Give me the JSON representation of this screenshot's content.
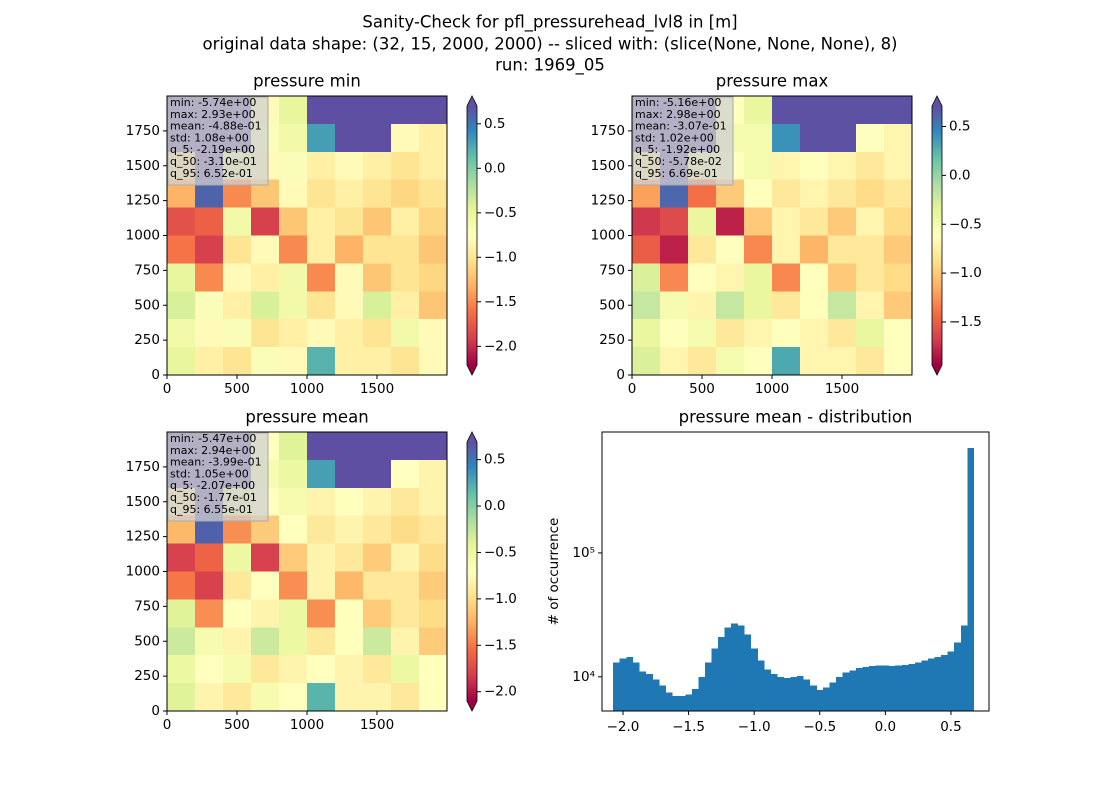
{
  "suptitle": [
    "Sanity-Check for pfl_pressurehead_lvl8 in [m]",
    "original data shape: (32, 15, 2000, 2000) -- sliced with: (slice(None, None, None), 8)",
    "run: 1969_05"
  ],
  "chart_data": [
    {
      "type": "heatmap",
      "title": "pressure min",
      "stats": [
        "min: -5.74e+00",
        "max: 2.93e+00",
        "mean: -4.88e-01",
        "std: 1.08e+00",
        "q_5: -2.19e+00",
        "q_50: -3.10e-01",
        "q_95: 6.52e-01"
      ],
      "xlim": [
        0,
        2000
      ],
      "ylim": [
        0,
        2000
      ],
      "xticks": [
        0,
        500,
        1000,
        1500
      ],
      "yticks": [
        0,
        250,
        500,
        750,
        1000,
        1250,
        1500,
        1750
      ],
      "values": [
        [
          0.7,
          0.7,
          0.7,
          -0.8,
          -0.5,
          0.7,
          0.7,
          0.7,
          0.7,
          0.7
        ],
        [
          0.7,
          0.7,
          0.7,
          -0.7,
          -0.6,
          0.3,
          0.7,
          0.7,
          -0.8,
          -0.9
        ],
        [
          -1.0,
          0.7,
          -0.6,
          -0.8,
          -0.7,
          -0.9,
          -0.8,
          -0.9,
          -1.0,
          -0.9
        ],
        [
          -1.3,
          0.6,
          -1.5,
          -1.2,
          -0.8,
          -1.0,
          -0.9,
          -1.0,
          -1.1,
          -1.0
        ],
        [
          -1.8,
          -1.7,
          -0.6,
          -1.9,
          -1.2,
          -0.9,
          -1.0,
          -1.2,
          -0.9,
          -1.1
        ],
        [
          -1.6,
          -1.9,
          -1.0,
          -0.8,
          -1.5,
          -0.9,
          -1.3,
          -1.0,
          -1.0,
          -1.2
        ],
        [
          -0.5,
          -1.5,
          -0.8,
          -0.9,
          -0.6,
          -1.5,
          -0.8,
          -1.2,
          -1.0,
          -1.1
        ],
        [
          -0.4,
          -0.7,
          -0.9,
          -0.4,
          -0.6,
          -1.0,
          -0.8,
          -0.4,
          -0.9,
          -1.2
        ],
        [
          -0.6,
          -0.8,
          -0.7,
          -1.0,
          -0.9,
          -0.8,
          -0.9,
          -1.0,
          -0.6,
          -0.8
        ],
        [
          -0.5,
          -0.9,
          -1.0,
          -0.7,
          -0.8,
          0.2,
          -0.9,
          -0.9,
          -1.0,
          -0.8
        ]
      ],
      "clim": [
        -2.21,
        0.7
      ],
      "cticks": [
        {
          "value": -2.0,
          "label": "−2.0"
        },
        {
          "value": -1.5,
          "label": "−1.5"
        },
        {
          "value": -1.0,
          "label": "−1.0"
        },
        {
          "value": -0.5,
          "label": "−0.5"
        },
        {
          "value": 0,
          "label": "0.0"
        },
        {
          "value": 0.5,
          "label": "0.5"
        }
      ],
      "colormap": [
        "#9e0142",
        "#d53e4f",
        "#f46d43",
        "#fdae61",
        "#fee08b",
        "#ffffbf",
        "#e6f598",
        "#abdda4",
        "#66c2a5",
        "#3288bd",
        "#5e4fa2"
      ]
    },
    {
      "type": "heatmap",
      "title": "pressure max",
      "stats": [
        "min: -5.16e+00",
        "max: 2.98e+00",
        "mean: -3.07e-01",
        "std: 1.02e+00",
        "q_5: -1.92e+00",
        "q_50: -5.78e-02",
        "q_95: 6.69e-01"
      ],
      "xlim": [
        0,
        2000
      ],
      "ylim": [
        0,
        2000
      ],
      "xticks": [
        0,
        500,
        1000,
        1500
      ],
      "yticks": [
        0,
        250,
        500,
        750,
        1000,
        1250,
        1500,
        1750
      ],
      "values": [
        [
          0.7,
          0.7,
          0.7,
          -0.6,
          -0.4,
          0.7,
          0.7,
          0.7,
          0.7,
          0.7
        ],
        [
          0.7,
          0.7,
          0.7,
          -0.5,
          -0.5,
          0.4,
          0.7,
          0.7,
          -0.6,
          -0.7
        ],
        [
          -0.8,
          0.7,
          -0.5,
          -0.6,
          -0.5,
          -0.7,
          -0.6,
          -0.7,
          -0.8,
          -0.7
        ],
        [
          -1.2,
          0.6,
          -1.4,
          -1.0,
          -0.6,
          -0.8,
          -0.7,
          -0.8,
          -0.9,
          -0.8
        ],
        [
          -1.7,
          -1.6,
          -0.4,
          -1.8,
          -1.0,
          -0.7,
          -0.8,
          -1.0,
          -0.7,
          -0.9
        ],
        [
          -1.5,
          -1.8,
          -0.8,
          -0.6,
          -1.3,
          -0.7,
          -1.1,
          -0.8,
          -0.8,
          -1.0
        ],
        [
          -0.3,
          -1.3,
          -0.6,
          -0.7,
          -0.4,
          -1.3,
          -0.6,
          -1.0,
          -0.8,
          -0.9
        ],
        [
          -0.2,
          -0.5,
          -0.7,
          -0.2,
          -0.4,
          -0.8,
          -0.6,
          -0.2,
          -0.7,
          -1.0
        ],
        [
          -0.4,
          -0.6,
          -0.5,
          -0.8,
          -0.7,
          -0.6,
          -0.7,
          -0.8,
          -0.4,
          -0.6
        ],
        [
          -0.3,
          -0.7,
          -0.8,
          -0.5,
          -0.6,
          0.3,
          -0.7,
          -0.7,
          -0.8,
          -0.6
        ]
      ],
      "clim": [
        -1.94,
        0.71
      ],
      "cticks": [
        {
          "value": -1.5,
          "label": "−1.5"
        },
        {
          "value": -1.0,
          "label": "−1.0"
        },
        {
          "value": -0.5,
          "label": "−0.5"
        },
        {
          "value": 0,
          "label": "0.0"
        },
        {
          "value": 0.5,
          "label": "0.5"
        }
      ],
      "colormap": [
        "#9e0142",
        "#d53e4f",
        "#f46d43",
        "#fdae61",
        "#fee08b",
        "#ffffbf",
        "#e6f598",
        "#abdda4",
        "#66c2a5",
        "#3288bd",
        "#5e4fa2"
      ]
    },
    {
      "type": "heatmap",
      "title": "pressure mean",
      "stats": [
        "min: -5.47e+00",
        "max: 2.94e+00",
        "mean: -3.99e-01",
        "std: 1.05e+00",
        "q_5: -2.07e+00",
        "q_50: -1.77e-01",
        "q_95: 6.55e-01"
      ],
      "xlim": [
        0,
        2000
      ],
      "ylim": [
        0,
        2000
      ],
      "xticks": [
        0,
        500,
        1000,
        1500
      ],
      "yticks": [
        0,
        250,
        500,
        750,
        1000,
        1250,
        1500,
        1750
      ],
      "values": [
        [
          0.7,
          0.7,
          0.7,
          -0.7,
          -0.4,
          0.7,
          0.7,
          0.7,
          0.7,
          0.7
        ],
        [
          0.7,
          0.7,
          0.7,
          -0.6,
          -0.5,
          0.3,
          0.7,
          0.7,
          -0.7,
          -0.8
        ],
        [
          -0.9,
          0.7,
          -0.5,
          -0.7,
          -0.6,
          -0.8,
          -0.7,
          -0.8,
          -0.9,
          -0.8
        ],
        [
          -1.2,
          0.6,
          -1.4,
          -1.1,
          -0.7,
          -0.9,
          -0.8,
          -0.9,
          -1.0,
          -0.9
        ],
        [
          -1.8,
          -1.6,
          -0.5,
          -1.8,
          -1.1,
          -0.8,
          -0.9,
          -1.1,
          -0.8,
          -1.0
        ],
        [
          -1.5,
          -1.8,
          -0.9,
          -0.7,
          -1.4,
          -0.8,
          -1.2,
          -0.9,
          -0.9,
          -1.1
        ],
        [
          -0.4,
          -1.4,
          -0.7,
          -0.8,
          -0.5,
          -1.4,
          -0.7,
          -1.1,
          -0.9,
          -1.0
        ],
        [
          -0.3,
          -0.6,
          -0.8,
          -0.3,
          -0.5,
          -0.9,
          -0.7,
          -0.3,
          -0.8,
          -1.1
        ],
        [
          -0.5,
          -0.7,
          -0.6,
          -0.9,
          -0.8,
          -0.7,
          -0.8,
          -0.9,
          -0.5,
          -0.7
        ],
        [
          -0.4,
          -0.8,
          -0.9,
          -0.6,
          -0.7,
          0.2,
          -0.8,
          -0.8,
          -0.9,
          -0.7
        ]
      ],
      "clim": [
        -2.1,
        0.69
      ],
      "cticks": [
        {
          "value": -2.0,
          "label": "−2.0"
        },
        {
          "value": -1.5,
          "label": "−1.5"
        },
        {
          "value": -1.0,
          "label": "−1.0"
        },
        {
          "value": -0.5,
          "label": "−0.5"
        },
        {
          "value": 0,
          "label": "0.0"
        },
        {
          "value": 0.5,
          "label": "0.5"
        }
      ],
      "colormap": [
        "#9e0142",
        "#d53e4f",
        "#f46d43",
        "#fdae61",
        "#fee08b",
        "#ffffbf",
        "#e6f598",
        "#abdda4",
        "#66c2a5",
        "#3288bd",
        "#5e4fa2"
      ]
    },
    {
      "type": "histogram",
      "title": "pressure mean - distribution",
      "ylabel": "# of occurrence",
      "color": "#1f77b4",
      "log_y": true,
      "bins": [
        -2.075,
        -2.025,
        -1.975,
        -1.925,
        -1.875,
        -1.825,
        -1.775,
        -1.725,
        -1.675,
        -1.625,
        -1.575,
        -1.525,
        -1.475,
        -1.425,
        -1.375,
        -1.325,
        -1.275,
        -1.225,
        -1.175,
        -1.125,
        -1.075,
        -1.025,
        -0.975,
        -0.925,
        -0.875,
        -0.825,
        -0.775,
        -0.725,
        -0.675,
        -0.625,
        -0.575,
        -0.525,
        -0.475,
        -0.425,
        -0.375,
        -0.325,
        -0.275,
        -0.225,
        -0.175,
        -0.125,
        -0.075,
        -0.025,
        0.025,
        0.075,
        0.125,
        0.175,
        0.225,
        0.275,
        0.325,
        0.375,
        0.425,
        0.475,
        0.525,
        0.575,
        0.625,
        0.675
      ],
      "values": [
        13000,
        14000,
        14500,
        13000,
        11000,
        10500,
        9500,
        8500,
        7500,
        7000,
        7000,
        7200,
        8000,
        10000,
        13000,
        17000,
        21000,
        25000,
        27000,
        26000,
        22000,
        17000,
        13500,
        11500,
        10500,
        10000,
        9800,
        10000,
        10200,
        9500,
        8500,
        7800,
        8200,
        9000,
        10000,
        10800,
        11300,
        11800,
        12000,
        12200,
        12300,
        12300,
        12200,
        12300,
        12500,
        12700,
        13000,
        13500,
        14000,
        14500,
        15000,
        16000,
        19000,
        26000,
        700000
      ],
      "xlim": [
        -2.16,
        0.79
      ],
      "ylim": [
        5300,
        946000
      ],
      "xticks": [
        {
          "value": -2.0,
          "label": "−2.0"
        },
        {
          "value": -1.5,
          "label": "−1.5"
        },
        {
          "value": -1.0,
          "label": "−1.0"
        },
        {
          "value": -0.5,
          "label": "−0.5"
        },
        {
          "value": 0,
          "label": "0.0"
        },
        {
          "value": 0.5,
          "label": "0.5"
        }
      ],
      "yticks": [
        {
          "value": 10000,
          "label": "10⁴"
        },
        {
          "value": 100000,
          "label": "10⁵"
        }
      ]
    }
  ]
}
